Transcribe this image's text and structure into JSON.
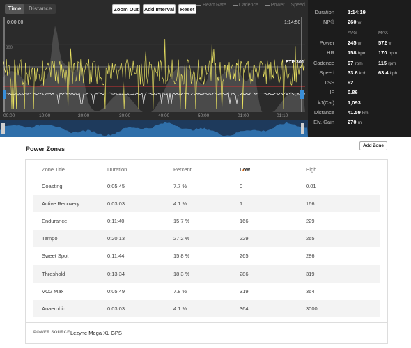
{
  "toolbar": {
    "toggle_time": "Time",
    "toggle_distance": "Distance",
    "zoom_out": "Zoom Out",
    "add_interval": "Add Interval",
    "reset": "Reset",
    "legend": [
      "Heart Rate",
      "Cadence",
      "Power",
      "Speed"
    ]
  },
  "chart": {
    "start_time": "0:00:00",
    "end_time": "1:14:50",
    "y_label": "800",
    "ftp_label": "FTP 301",
    "x_ticks": [
      "00:00",
      "10:00",
      "20:00",
      "30:00",
      "40:00",
      "50:00",
      "01:00",
      "01:10"
    ],
    "colors": {
      "power": "#e8e060",
      "heart_rate": "#cc3333",
      "cadence": "#ffffff",
      "handle": "#3a8fd8",
      "overview": "#2f6faa"
    }
  },
  "summary": {
    "duration_label": "Duration",
    "duration_value": "1:14:19",
    "np_label": "NP®",
    "np_value": "260",
    "np_unit": "w",
    "avg_header": "AVG",
    "max_header": "MAX",
    "metrics": [
      {
        "label": "Power",
        "avg": "245",
        "avg_unit": "w",
        "max": "572",
        "max_unit": "w"
      },
      {
        "label": "HR",
        "avg": "158",
        "avg_unit": "bpm",
        "max": "170",
        "max_unit": "bpm"
      },
      {
        "label": "Cadence",
        "avg": "97",
        "avg_unit": "rpm",
        "max": "115",
        "max_unit": "rpm"
      },
      {
        "label": "Speed",
        "avg": "33.6",
        "avg_unit": "kph",
        "max": "63.4",
        "max_unit": "kph"
      }
    ],
    "singles": [
      {
        "label": "TSS",
        "value": "92",
        "unit": ""
      },
      {
        "label": "IF",
        "value": "0.86",
        "unit": ""
      },
      {
        "label": "kJ(Cal)",
        "value": "1,093",
        "unit": ""
      },
      {
        "label": "Distance",
        "value": "41.59",
        "unit": "km"
      },
      {
        "label": "Elv. Gain",
        "value": "270",
        "unit": "m"
      }
    ]
  },
  "power_zones": {
    "title": "Power Zones",
    "add_zone": "Add Zone",
    "headers": {
      "zone": "Zone Title",
      "duration": "Duration",
      "percent": "Percent",
      "low": "Low",
      "high": "High"
    },
    "rows": [
      {
        "zone": "Coasting",
        "duration": "0:05:45",
        "percent": "7.7 %",
        "low": "0",
        "high": "0.01"
      },
      {
        "zone": "Active Recovery",
        "duration": "0:03:03",
        "percent": "4.1 %",
        "low": "1",
        "high": "166"
      },
      {
        "zone": "Endurance",
        "duration": "0:11:40",
        "percent": "15.7 %",
        "low": "166",
        "high": "229"
      },
      {
        "zone": "Tempo",
        "duration": "0:20:13",
        "percent": "27.2 %",
        "low": "229",
        "high": "265"
      },
      {
        "zone": "Sweet Spot",
        "duration": "0:11:44",
        "percent": "15.8 %",
        "low": "265",
        "high": "286"
      },
      {
        "zone": "Threshold",
        "duration": "0:13:34",
        "percent": "18.3 %",
        "low": "286",
        "high": "319"
      },
      {
        "zone": "VO2 Max",
        "duration": "0:05:49",
        "percent": "7.8 %",
        "low": "319",
        "high": "364"
      },
      {
        "zone": "Anaerobic",
        "duration": "0:03:03",
        "percent": "4.1 %",
        "low": "364",
        "high": "3000"
      }
    ],
    "power_source_label": "POWER SOURCE",
    "power_source_value": "Lezyne Mega XL GPS"
  }
}
